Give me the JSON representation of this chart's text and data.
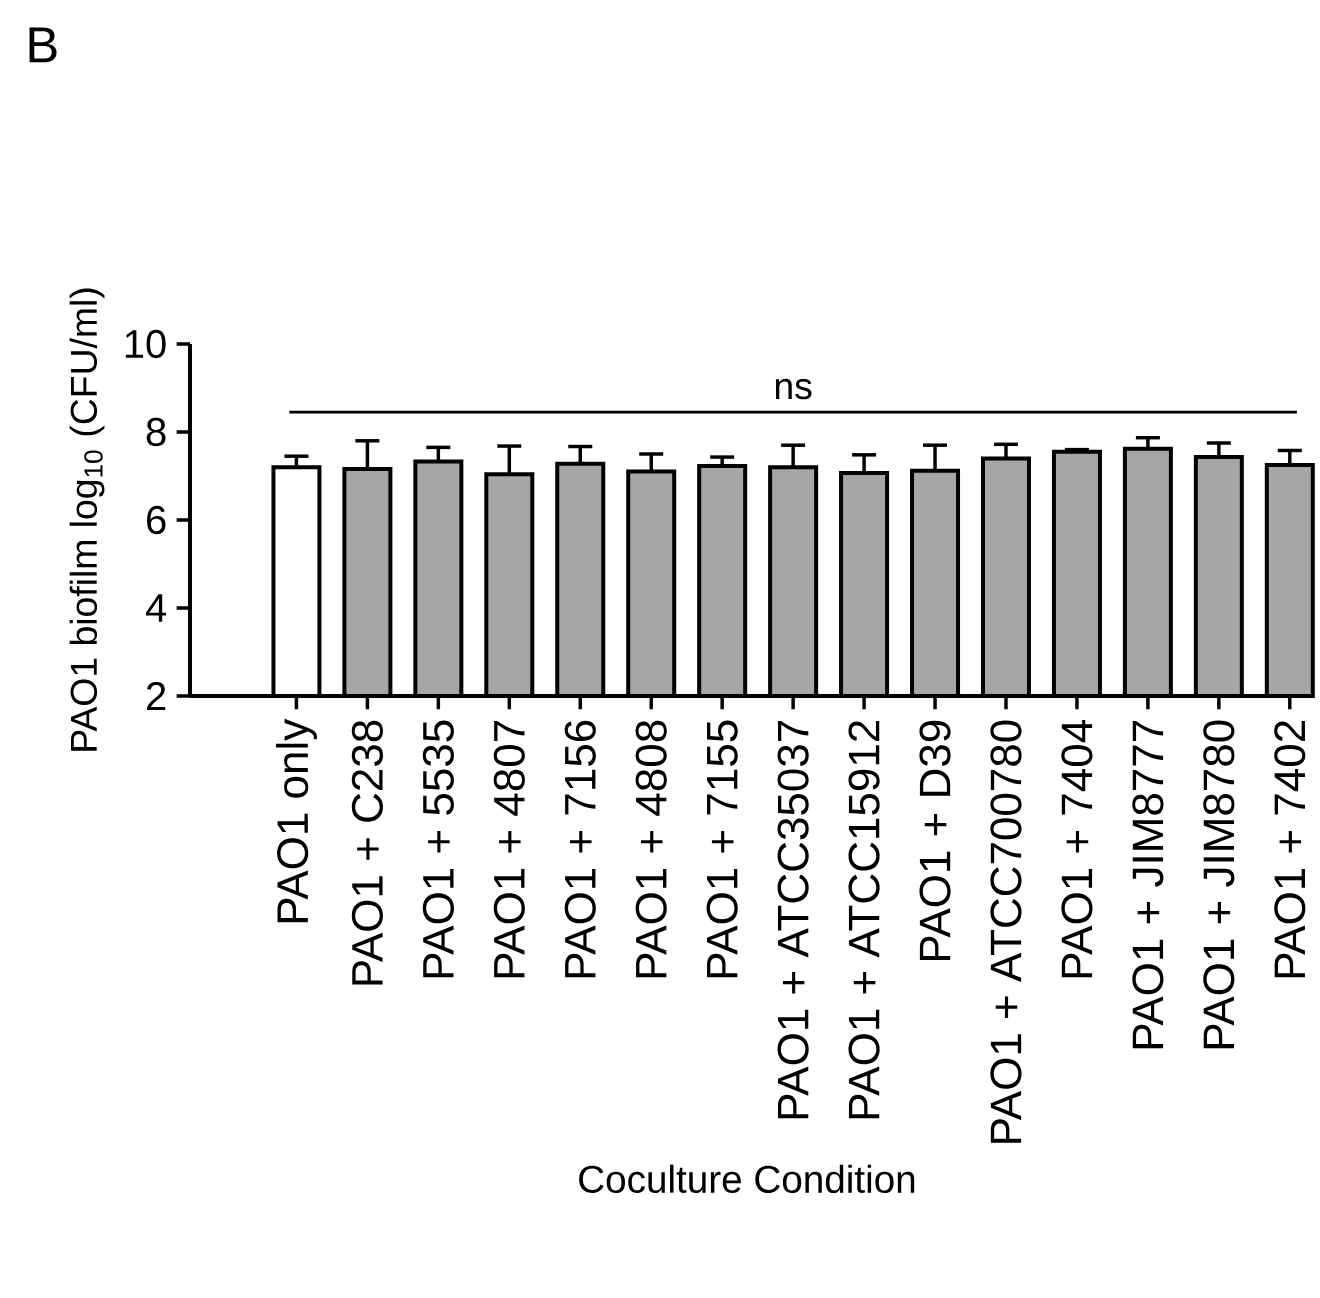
{
  "chart_data": {
    "type": "bar",
    "ylabel": "PAO1 biofilm log$_{10}$ (CFU/ml)",
    "xlabel": "Coculture Condition",
    "categories": [
      "PAO1 only",
      "PAO1 + C238",
      "PAO1 + 5535",
      "PAO1 + 4807",
      "PAO1 + 7156",
      "PAO1 + 4808",
      "PAO1 + 7155",
      "PAO1 + ATCC35037",
      "PAO1 + ATCC15912",
      "PAO1 + D39",
      "PAO1 + ATCC700780",
      "PAO1 + 7404",
      "PAO1 + JIM8777",
      "PAO1 + JIM8780",
      "PAO1 + 7402"
    ],
    "values": [
      7.2,
      7.16,
      7.33,
      7.04,
      7.28,
      7.1,
      7.23,
      7.2,
      7.07,
      7.12,
      7.4,
      7.55,
      7.62,
      7.43,
      7.25
    ],
    "colors": [
      "#ffffff",
      "#a6a6a6",
      "#a6a6a6",
      "#a6a6a6",
      "#a6a6a6",
      "#a6a6a6",
      "#a6a6a6",
      "#a6a6a6",
      "#a6a6a6",
      "#a6a6a6",
      "#a6a6a6",
      "#a6a6a6",
      "#a6a6a6",
      "#a6a6a6",
      "#a6a6a6"
    ],
    "errors": [
      [
        7.2,
        7.45
      ],
      [
        7.16,
        7.8
      ],
      [
        7.33,
        7.65
      ],
      [
        7.04,
        7.68
      ],
      [
        7.28,
        7.67
      ],
      [
        7.1,
        7.5
      ],
      [
        7.23,
        7.43
      ],
      [
        7.2,
        7.7
      ],
      [
        7.07,
        7.48
      ],
      [
        7.12,
        7.7
      ],
      [
        7.4,
        7.72
      ],
      [
        7.55,
        7.6
      ],
      [
        7.62,
        7.87
      ],
      [
        7.43,
        7.75
      ],
      [
        7.25,
        7.58
      ]
    ],
    "ylim": [
      2,
      10
    ],
    "yticks": [
      2,
      4,
      6,
      8,
      10
    ],
    "grid": false,
    "ref_lines": [
      {
        "axis": "y",
        "value": 8.45,
        "label": "ns"
      }
    ],
    "annotations": [
      "B"
    ]
  }
}
